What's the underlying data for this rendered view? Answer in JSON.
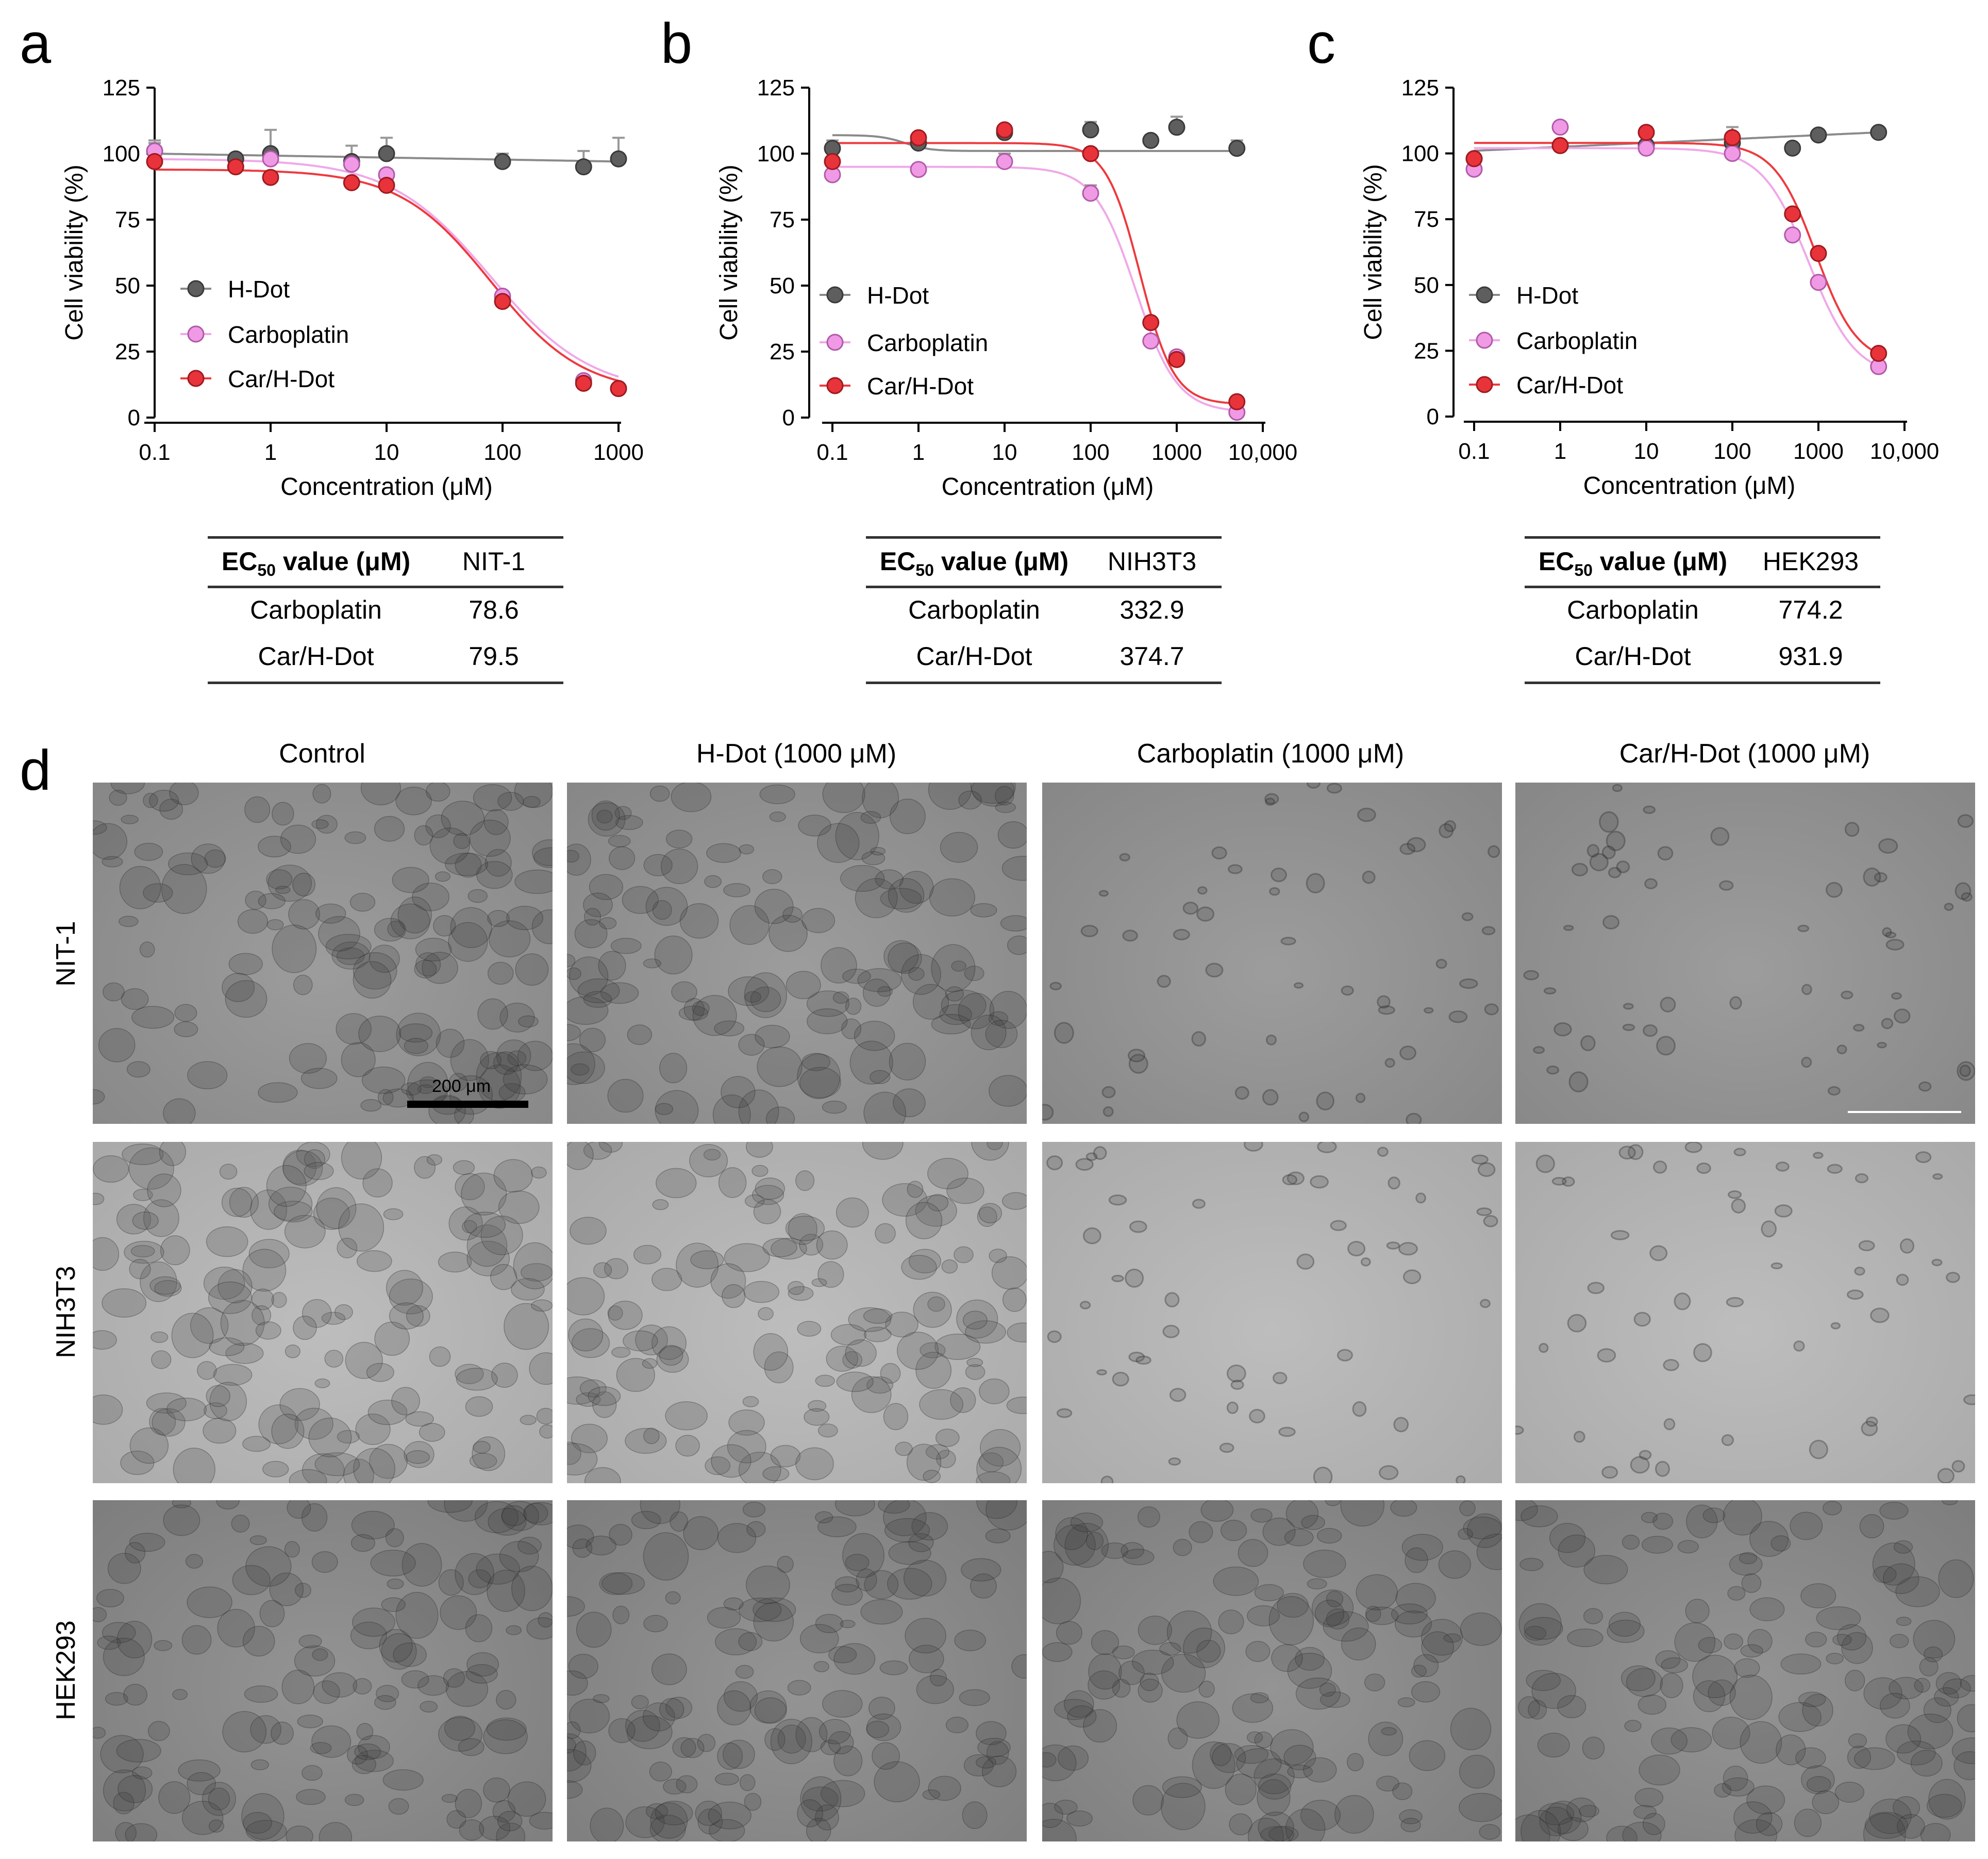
{
  "panels": [
    {
      "letter": "a"
    },
    {
      "letter": "b"
    },
    {
      "letter": "c"
    },
    {
      "letter": "d"
    }
  ],
  "chart_data": [
    {
      "panel": "a",
      "type": "scatter",
      "xscale": "log",
      "xlabel": "Concentration (μM)",
      "ylabel": "Cell viability (%)",
      "xlim": [
        0.1,
        1000
      ],
      "ylim": [
        0,
        125
      ],
      "xticks": [
        0.1,
        1,
        10,
        100,
        1000
      ],
      "xtick_labels": [
        "0.1",
        "1",
        "10",
        "100",
        "1000"
      ],
      "yticks": [
        0,
        25,
        50,
        75,
        100,
        125
      ],
      "ytick_labels": [
        "0",
        "25",
        "50",
        "75",
        "100",
        "125"
      ],
      "legend_position": "left-middle",
      "series": [
        {
          "name": "H-Dot",
          "color": "#5e5e5e",
          "curve": "flat",
          "x": [
            0.1,
            0.5,
            1,
            5,
            10,
            100,
            500,
            1000
          ],
          "y": [
            101,
            98,
            100,
            97,
            100,
            97,
            95,
            98
          ],
          "err": [
            3,
            2,
            9,
            6,
            6,
            3,
            6,
            8
          ],
          "fit": {
            "top": 100,
            "bottom": 97
          }
        },
        {
          "name": "Carboplatin",
          "color": "#f09ae6",
          "curve": "pink",
          "x": [
            0.1,
            1,
            5,
            10,
            100,
            500,
            1000
          ],
          "y": [
            101,
            98,
            96,
            92,
            46,
            14,
            11
          ],
          "err": [
            4,
            2,
            2,
            2,
            1,
            1,
            1
          ],
          "fit": {
            "top": 98,
            "bottom": 9,
            "ec50": 78.6,
            "hill": 1.0
          }
        },
        {
          "name": "Car/H-Dot",
          "color": "#e8333a",
          "curve": "red",
          "x": [
            0.1,
            0.5,
            1,
            5,
            10,
            100,
            500,
            1000
          ],
          "y": [
            97,
            95,
            91,
            89,
            88,
            44,
            13,
            11
          ],
          "err": [
            2,
            1,
            1,
            1,
            1,
            1,
            1,
            1
          ],
          "fit": {
            "top": 94,
            "bottom": 9,
            "ec50": 79.5,
            "hill": 1.1
          }
        }
      ]
    },
    {
      "panel": "b",
      "type": "scatter",
      "xscale": "log",
      "xlabel": "Concentration (μM)",
      "ylabel": "Cell viability (%)",
      "xlim": [
        0.1,
        5000
      ],
      "ylim": [
        0,
        125
      ],
      "xticks": [
        0.1,
        1,
        10,
        100,
        1000,
        10000
      ],
      "xtick_labels": [
        "0.1",
        "1",
        "10",
        "100",
        "1000",
        "10,000"
      ],
      "yticks": [
        0,
        25,
        50,
        75,
        100,
        125
      ],
      "ytick_labels": [
        "0",
        "25",
        "50",
        "75",
        "100",
        "125"
      ],
      "legend_position": "left-middle",
      "series": [
        {
          "name": "H-Dot",
          "color": "#5e5e5e",
          "curve": "flat",
          "x": [
            0.1,
            1,
            10,
            100,
            500,
            1000,
            5000
          ],
          "y": [
            102,
            104,
            108,
            109,
            105,
            110,
            102
          ],
          "err": [
            3,
            2,
            2,
            3,
            2,
            4,
            3
          ],
          "fit": {
            "top": 107,
            "bottom": 101,
            "ec50": 0.7,
            "hill": 3.0,
            "increasing": true
          }
        },
        {
          "name": "Carboplatin",
          "color": "#f09ae6",
          "curve": "pink",
          "x": [
            0.1,
            1,
            10,
            100,
            500,
            1000,
            5000
          ],
          "y": [
            92,
            94,
            97,
            85,
            29,
            23,
            2
          ],
          "err": [
            2,
            2,
            3,
            3,
            1,
            1,
            1
          ],
          "fit": {
            "top": 95,
            "bottom": 2,
            "ec50": 332.9,
            "hill": 1.8
          }
        },
        {
          "name": "Car/H-Dot",
          "color": "#e8333a",
          "curve": "red",
          "x": [
            0.1,
            1,
            10,
            100,
            500,
            1000,
            5000
          ],
          "y": [
            97,
            106,
            109,
            100,
            36,
            22,
            6
          ],
          "err": [
            2,
            1,
            1,
            2,
            1,
            2,
            1
          ],
          "fit": {
            "top": 104,
            "bottom": 5,
            "ec50": 374.7,
            "hill": 2.2
          }
        }
      ]
    },
    {
      "panel": "c",
      "type": "scatter",
      "xscale": "log",
      "xlabel": "Concentration (μM)",
      "ylabel": "Cell viability (%)",
      "xlim": [
        0.1,
        5000
      ],
      "ylim": [
        0,
        125
      ],
      "xticks": [
        0.1,
        1,
        10,
        100,
        1000,
        10000
      ],
      "xtick_labels": [
        "0.1",
        "1",
        "10",
        "100",
        "1000",
        "10,000"
      ],
      "yticks": [
        0,
        25,
        50,
        75,
        100,
        125
      ],
      "ytick_labels": [
        "0",
        "25",
        "50",
        "75",
        "100",
        "125"
      ],
      "legend_position": "left-middle",
      "series": [
        {
          "name": "H-Dot",
          "color": "#5e5e5e",
          "curve": "flat",
          "x": [
            0.1,
            1,
            10,
            100,
            500,
            1000,
            5000
          ],
          "y": [
            98,
            103,
            103,
            104,
            102,
            107,
            108
          ],
          "err": [
            2,
            1,
            1,
            1,
            1,
            1,
            1
          ],
          "fit": {
            "top": 101,
            "bottom": 108
          }
        },
        {
          "name": "Carboplatin",
          "color": "#f09ae6",
          "curve": "pink",
          "x": [
            0.1,
            1,
            10,
            100,
            500,
            1000,
            5000
          ],
          "y": [
            94,
            110,
            102,
            100,
            69,
            51,
            19
          ],
          "err": [
            2,
            2,
            2,
            1,
            1,
            1,
            1
          ],
          "fit": {
            "top": 102,
            "bottom": 15,
            "ec50": 774.2,
            "hill": 1.6
          }
        },
        {
          "name": "Car/H-Dot",
          "color": "#e8333a",
          "curve": "red",
          "x": [
            0.1,
            1,
            10,
            100,
            500,
            1000,
            5000
          ],
          "y": [
            98,
            103,
            108,
            106,
            77,
            62,
            24
          ],
          "err": [
            2,
            1,
            2,
            4,
            1,
            1,
            1
          ],
          "fit": {
            "top": 104,
            "bottom": 20,
            "ec50": 931.9,
            "hill": 1.8
          }
        }
      ]
    },
    {
      "panel": "a",
      "type": "table",
      "header": {
        "label": "EC",
        "sub": "50",
        "label_rest": " value (μM)",
        "cell_line": "NIT-1"
      },
      "rows": [
        {
          "name": "Carboplatin",
          "value": "78.6"
        },
        {
          "name": "Car/H-Dot",
          "value": "79.5"
        }
      ]
    },
    {
      "panel": "b",
      "type": "table",
      "header": {
        "label": "EC",
        "sub": "50",
        "label_rest": " value (μM)",
        "cell_line": "NIH3T3"
      },
      "rows": [
        {
          "name": "Carboplatin",
          "value": "332.9"
        },
        {
          "name": "Car/H-Dot",
          "value": "374.7"
        }
      ]
    },
    {
      "panel": "c",
      "type": "table",
      "header": {
        "label": "EC",
        "sub": "50",
        "label_rest": " value (μM)",
        "cell_line": "HEK293"
      },
      "rows": [
        {
          "name": "Carboplatin",
          "value": "774.2"
        },
        {
          "name": "Car/H-Dot",
          "value": "931.9"
        }
      ]
    }
  ],
  "micrographs": {
    "columns": [
      "Control",
      "H-Dot (1000 μM)",
      "Carboplatin (1000 μM)",
      "Car/H-Dot (1000 μM)"
    ],
    "rows": [
      "NIT-1",
      "NIH3T3",
      "HEK293"
    ],
    "scale_bar_label": "200 μm",
    "row_tones": [
      "#8f8f8f",
      "#b4b4b4",
      "#858585"
    ]
  }
}
